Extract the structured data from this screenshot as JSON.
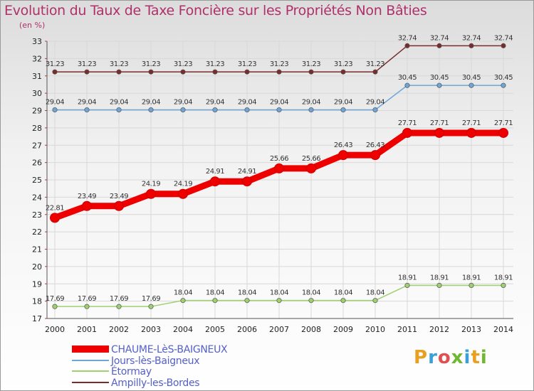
{
  "title": "Evolution du Taux de Taxe Foncière sur les Propriétés Non Bâties",
  "unit_label": "(en %)",
  "logo_text": "Proxiti",
  "chart_data": {
    "type": "line",
    "title": "Evolution du Taux de Taxe Foncière sur les Propriétés Non Bâties",
    "ylabel": "(en %)",
    "xlabel": "",
    "ylim": [
      17,
      33
    ],
    "grid": true,
    "categories": [
      "2000",
      "2001",
      "2002",
      "2003",
      "2004",
      "2005",
      "2006",
      "2007",
      "2008",
      "2009",
      "2010",
      "2011",
      "2012",
      "2013",
      "2014"
    ],
    "yticks": [
      17,
      18,
      19,
      20,
      21,
      22,
      23,
      24,
      25,
      26,
      27,
      28,
      29,
      30,
      31,
      32,
      33
    ],
    "series": [
      {
        "name": "CHAUME-LèS-BAIGNEUX",
        "color": "#ee0000",
        "width": "thick",
        "values": [
          22.81,
          23.49,
          23.49,
          24.19,
          24.19,
          24.91,
          24.91,
          25.66,
          25.66,
          26.43,
          26.43,
          27.71,
          27.71,
          27.71,
          27.71
        ],
        "labels": [
          "22.81",
          "23.49",
          "23.49",
          "24.19",
          "24.19",
          "24.91",
          "24.91",
          "25.66",
          "25.66",
          "26.43",
          "26.43",
          "27.71",
          "27.71",
          "27.71",
          "27.71"
        ]
      },
      {
        "name": "Jours-lès-Baigneux",
        "color": "#6ea6d8",
        "width": "thin",
        "values": [
          29.04,
          29.04,
          29.04,
          29.04,
          29.04,
          29.04,
          29.04,
          29.04,
          29.04,
          29.04,
          29.04,
          30.45,
          30.45,
          30.45,
          30.45
        ],
        "labels": [
          "29.04",
          "29.04",
          "29.04",
          "29.04",
          "29.04",
          "29.04",
          "29.04",
          "29.04",
          "29.04",
          "29.04",
          "29.04",
          "30.45",
          "30.45",
          "30.45",
          "30.45"
        ]
      },
      {
        "name": "Étormay",
        "color": "#9ed070",
        "width": "thin",
        "values": [
          17.69,
          17.69,
          17.69,
          17.69,
          18.04,
          18.04,
          18.04,
          18.04,
          18.04,
          18.04,
          18.04,
          18.91,
          18.91,
          18.91,
          18.91
        ],
        "labels": [
          "17.69",
          "17.69",
          "17.69",
          "17.69",
          "18.04",
          "18.04",
          "18.04",
          "18.04",
          "18.04",
          "18.04",
          "18.04",
          "18.91",
          "18.91",
          "18.91",
          "18.91"
        ]
      },
      {
        "name": "Ampilly-les-Bordes",
        "color": "#7a2c2c",
        "width": "thin",
        "values": [
          31.23,
          31.23,
          31.23,
          31.23,
          31.23,
          31.23,
          31.23,
          31.23,
          31.23,
          31.23,
          31.23,
          32.74,
          32.74,
          32.74,
          32.74
        ],
        "labels": [
          "31.23",
          "31.23",
          "31.23",
          "31.23",
          "31.23",
          "31.23",
          "31.23",
          "31.23",
          "31.23",
          "31.23",
          "31.23",
          "32.74",
          "32.74",
          "32.74",
          "32.74"
        ]
      }
    ]
  }
}
